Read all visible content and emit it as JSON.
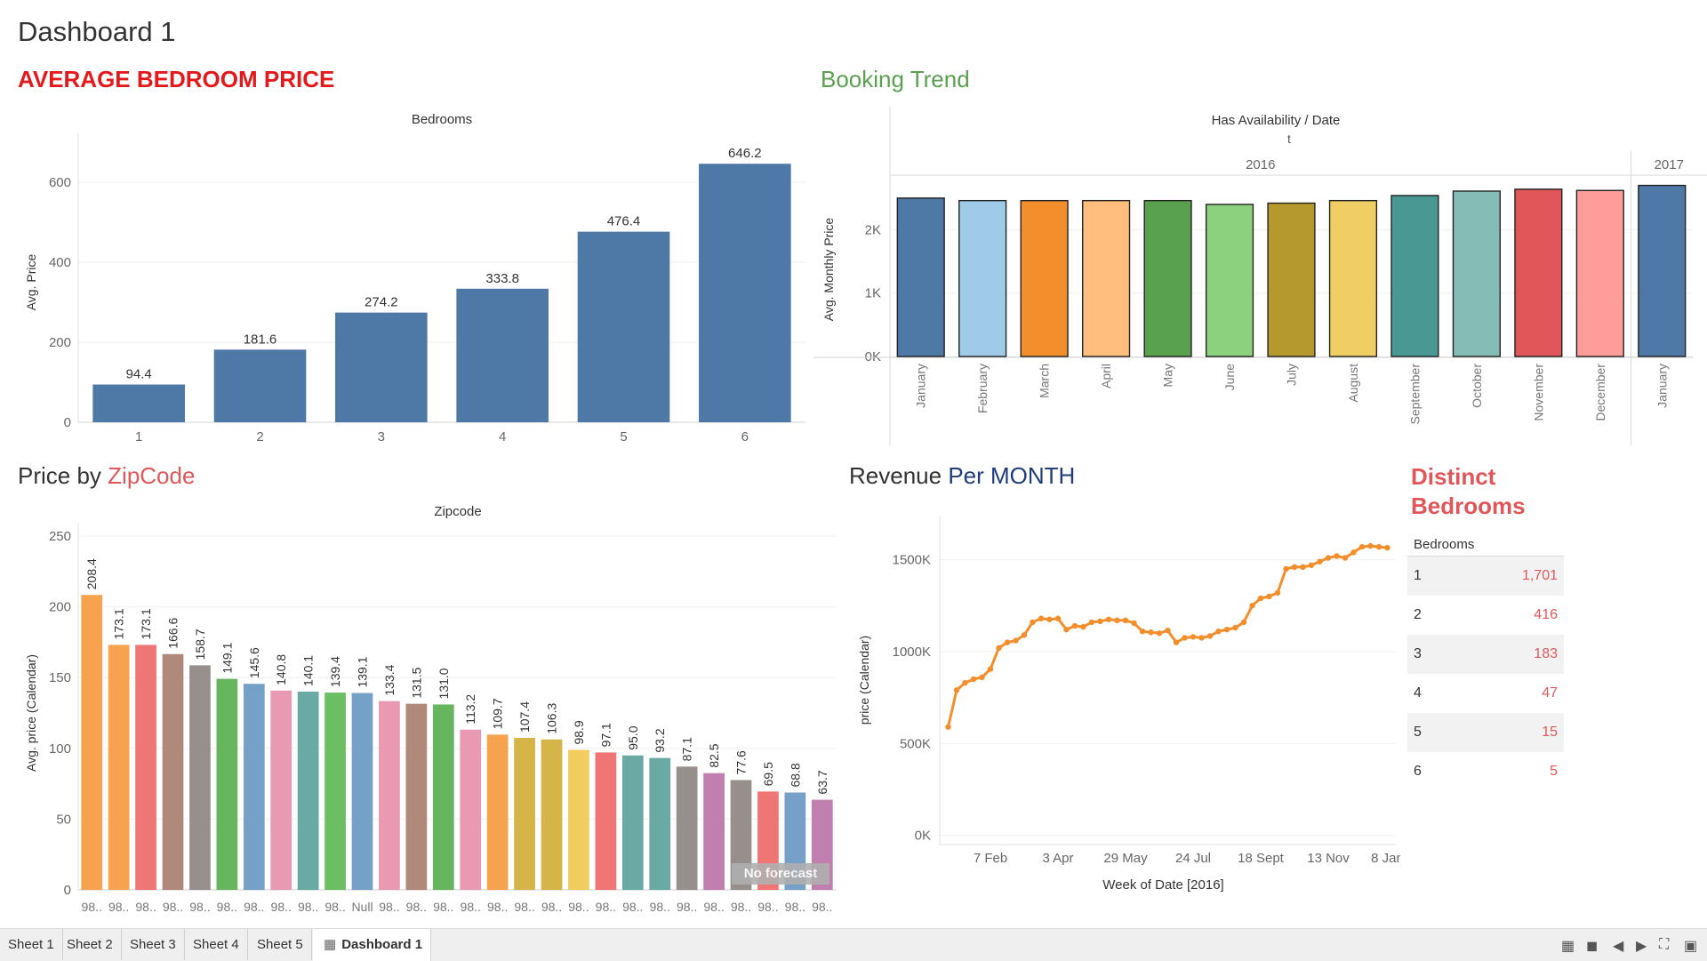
{
  "dashboard": {
    "title": "Dashboard 1"
  },
  "colors": {
    "steel": "#4e79a7",
    "red_title": "#e31a1c",
    "green_title": "#59a14f",
    "navy": "#1f3d7a",
    "coral": "#e15759"
  },
  "bedroom_price": {
    "title": "AVERAGE BEDROOM PRICE",
    "chart_data": {
      "type": "bar",
      "title": "Bedrooms",
      "categories": [
        "1",
        "2",
        "3",
        "4",
        "5",
        "6"
      ],
      "values": [
        94.4,
        181.6,
        274.2,
        333.8,
        476.4,
        646.2
      ],
      "value_labels": [
        "94.4",
        "181.6",
        "274.2",
        "333.8",
        "476.4",
        "646.2"
      ],
      "ylabel": "Avg. Price",
      "xlabel": "",
      "ylim": [
        0,
        700
      ],
      "yticks": [
        0,
        200,
        400,
        600
      ],
      "ytick_labels": [
        "0",
        "200",
        "400",
        "600"
      ]
    }
  },
  "booking_trend": {
    "title": "Booking Trend",
    "chart_data": {
      "type": "bar",
      "header": "Has Availability  /  Date",
      "subheader": "t",
      "year_labels": [
        "2016",
        "2017"
      ],
      "categories": [
        "January",
        "February",
        "March",
        "April",
        "May",
        "June",
        "July",
        "August",
        "September",
        "October",
        "November",
        "December",
        "January"
      ],
      "years": [
        2016,
        2016,
        2016,
        2016,
        2016,
        2016,
        2016,
        2016,
        2016,
        2016,
        2016,
        2016,
        2017
      ],
      "values": [
        2500,
        2460,
        2460,
        2460,
        2460,
        2400,
        2420,
        2460,
        2540,
        2610,
        2640,
        2620,
        2700
      ],
      "colors": [
        "#4e79a7",
        "#a0cbe8",
        "#f28e2b",
        "#ffbe7d",
        "#59a14f",
        "#8cd17d",
        "#b6992d",
        "#f1ce63",
        "#499894",
        "#86bcb6",
        "#e15759",
        "#ff9d9a",
        "#4e79a7"
      ],
      "ylabel": "Avg. Monthly Price",
      "xlabel": "",
      "ylim": [
        0,
        2750
      ],
      "yticks": [
        0,
        1000,
        2000
      ],
      "ytick_labels": [
        "0K",
        "1K",
        "2K"
      ]
    }
  },
  "zip_price": {
    "title_prefix": "Price by ",
    "title_highlight": "ZipCode",
    "forecast_note": "No forecast",
    "chart_data": {
      "type": "bar",
      "title": "Zipcode",
      "categories": [
        "98..",
        "98..",
        "98..",
        "98..",
        "98..",
        "98..",
        "98..",
        "98..",
        "98..",
        "98..",
        "Null",
        "98..",
        "98..",
        "98..",
        "98..",
        "98..",
        "98..",
        "98..",
        "98..",
        "98..",
        "98..",
        "98..",
        "98..",
        "98..",
        "98..",
        "98..",
        "98..",
        "98.."
      ],
      "values": [
        208.4,
        173.1,
        173.1,
        166.6,
        158.7,
        149.1,
        145.6,
        140.8,
        140.1,
        139.4,
        139.1,
        133.4,
        131.5,
        131.0,
        113.2,
        109.7,
        107.4,
        106.3,
        98.9,
        97.1,
        95.0,
        93.2,
        87.1,
        82.5,
        77.6,
        69.5,
        68.8,
        63.7
      ],
      "value_labels": [
        "208.4",
        "173.1",
        "173.1",
        "166.6",
        "158.7",
        "149.1",
        "145.6",
        "140.8",
        "140.1",
        "139.4",
        "139.1",
        "133.4",
        "131.5",
        "131.0",
        "113.2",
        "109.7",
        "107.4",
        "106.3",
        "98.9",
        "97.1",
        "95.0",
        "93.2",
        "87.1",
        "82.5",
        "77.6",
        "69.5",
        "68.8",
        "63.7"
      ],
      "colors": [
        "#f7a24f",
        "#f7a24f",
        "#f07676",
        "#b0897a",
        "#978f8b",
        "#66b55f",
        "#75a0c8",
        "#e99ab2",
        "#6aaaa4",
        "#6bbf62",
        "#75a0c8",
        "#e99ab2",
        "#b0897a",
        "#66b55f",
        "#e99ab2",
        "#f7a24f",
        "#d5b448",
        "#d5b448",
        "#f2cc5e",
        "#f07676",
        "#6aaaa4",
        "#6aaaa4",
        "#978f8b",
        "#c07fae",
        "#978f8b",
        "#f07676",
        "#75a0c8",
        "#c07fae"
      ],
      "ylabel": "Avg. price (Calendar)",
      "xlabel": "",
      "ylim": [
        0,
        250
      ],
      "yticks": [
        0,
        50,
        100,
        150,
        200,
        250
      ],
      "ytick_labels": [
        "0",
        "50",
        "100",
        "150",
        "200",
        "250"
      ]
    }
  },
  "revenue": {
    "title_prefix": "Revenue ",
    "title_highlight": "Per MONTH",
    "chart_data": {
      "type": "line",
      "x": [
        1,
        2,
        3,
        4,
        5,
        6,
        7,
        8,
        9,
        10,
        11,
        12,
        13,
        14,
        15,
        16,
        17,
        18,
        19,
        20,
        21,
        22,
        23,
        24,
        25,
        26,
        27,
        28,
        29,
        30,
        31,
        32,
        33,
        34,
        35,
        36,
        37,
        38,
        39,
        40,
        41,
        42,
        43,
        44,
        45,
        46,
        47,
        48,
        49,
        50,
        51,
        52,
        53
      ],
      "values": [
        590,
        790,
        830,
        850,
        860,
        905,
        1020,
        1050,
        1060,
        1090,
        1160,
        1180,
        1175,
        1180,
        1120,
        1140,
        1135,
        1160,
        1165,
        1175,
        1170,
        1170,
        1155,
        1110,
        1105,
        1100,
        1115,
        1050,
        1075,
        1080,
        1075,
        1085,
        1110,
        1120,
        1130,
        1160,
        1250,
        1290,
        1300,
        1320,
        1450,
        1460,
        1460,
        1470,
        1490,
        1510,
        1520,
        1510,
        1540,
        1570,
        1575,
        1570,
        1565
      ],
      "ylabel": "price (Calendar)",
      "xlabel": "Week of Date [2016]",
      "ylim": [
        -50,
        1740
      ],
      "yticks": [
        0,
        500,
        1000,
        1500
      ],
      "ytick_labels": [
        "0K",
        "500K",
        "1000K",
        "1500K"
      ],
      "xtick_labels": [
        "7 Feb",
        "3 Apr",
        "29 May",
        "24 Jul",
        "18 Sept",
        "13 Nov",
        "8 Jan"
      ],
      "xtick_positions": [
        6,
        14,
        22,
        30,
        38,
        46,
        53
      ],
      "color": "#f28e2b"
    }
  },
  "distinct": {
    "title_line1": "Distinct",
    "title_line2": "Bedrooms",
    "chart_data": {
      "type": "table",
      "column": "Bedrooms",
      "rows": [
        {
          "label": "1",
          "value": "1,701"
        },
        {
          "label": "2",
          "value": "416"
        },
        {
          "label": "3",
          "value": "183"
        },
        {
          "label": "4",
          "value": "47"
        },
        {
          "label": "5",
          "value": "15"
        },
        {
          "label": "6",
          "value": "5"
        }
      ]
    }
  },
  "sheetbar": {
    "tabs": [
      "Sheet 1",
      "Sheet 2",
      "Sheet 3",
      "Sheet 4",
      "Sheet 5",
      "Dashboard 1"
    ],
    "active": "Dashboard 1",
    "icons": [
      "grid-view-icon",
      "filmstrip-icon",
      "prev-icon",
      "next-icon",
      "fullscreen-icon",
      "presentation-icon"
    ]
  }
}
